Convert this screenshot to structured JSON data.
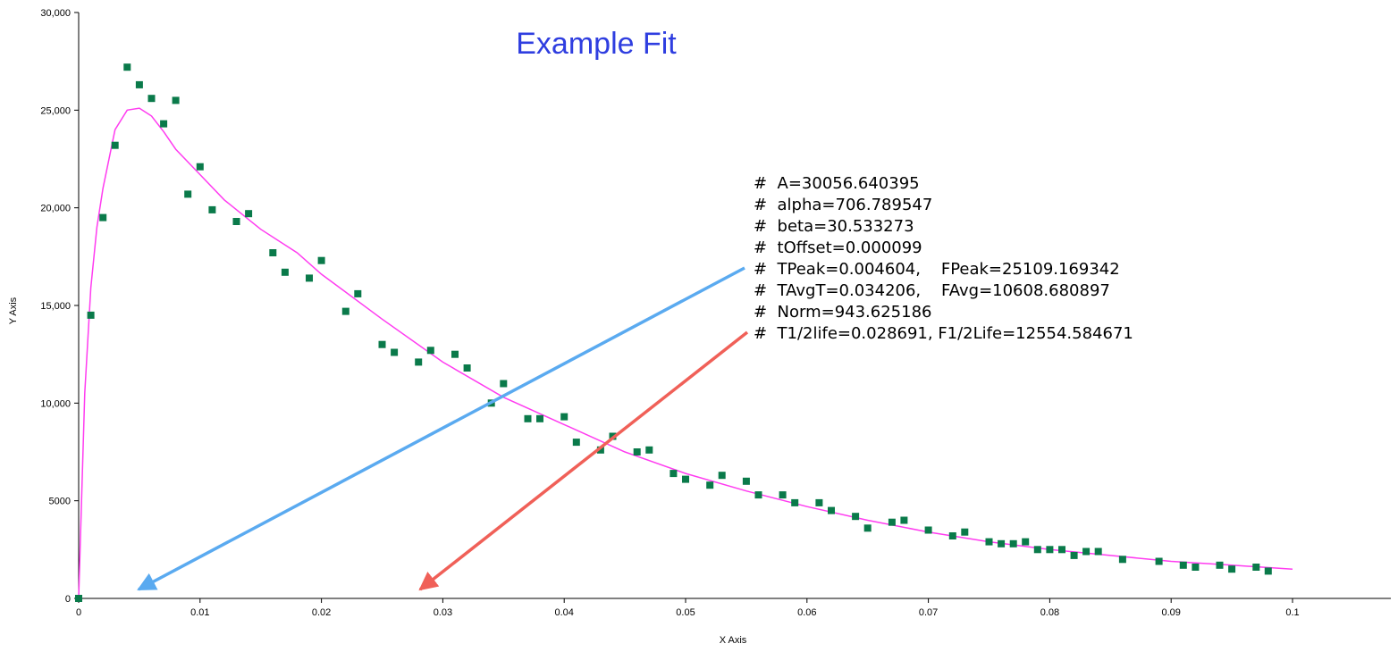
{
  "chart_data": {
    "type": "scatter",
    "title": "Example Fit",
    "xlabel": "X Axis",
    "ylabel": "Y Axis",
    "xlim": [
      0,
      0.108
    ],
    "ylim": [
      0,
      30000
    ],
    "x_ticks": [
      0,
      0.01,
      0.02,
      0.03,
      0.04,
      0.05,
      0.06,
      0.07,
      0.08,
      0.09,
      0.1
    ],
    "x_tick_labels": [
      "0",
      "0.01",
      "0.02",
      "0.03",
      "0.04",
      "0.05",
      "0.06",
      "0.07",
      "0.08",
      "0.09",
      "0.1"
    ],
    "y_ticks": [
      0,
      5000,
      10000,
      15000,
      20000,
      25000,
      30000
    ],
    "y_tick_labels": [
      "0",
      "5000",
      "10,000",
      "15,000",
      "20,000",
      "25,000",
      "30,000"
    ],
    "grid": false,
    "colors": {
      "points": "#0a7a4a",
      "fit": "#ff3cf0",
      "title": "#2f3ee0",
      "arrow_blue": "#5aaaf0",
      "arrow_red": "#f06058"
    },
    "series": [
      {
        "kind": "points",
        "points": [
          [
            0.0,
            0
          ],
          [
            0.001,
            14500
          ],
          [
            0.002,
            19500
          ],
          [
            0.003,
            23200
          ],
          [
            0.004,
            27200
          ],
          [
            0.005,
            26300
          ],
          [
            0.006,
            25600
          ],
          [
            0.007,
            24300
          ],
          [
            0.008,
            25500
          ],
          [
            0.009,
            20700
          ],
          [
            0.01,
            22100
          ],
          [
            0.011,
            19900
          ],
          [
            0.013,
            19300
          ],
          [
            0.014,
            19700
          ],
          [
            0.016,
            17700
          ],
          [
            0.017,
            16700
          ],
          [
            0.019,
            16400
          ],
          [
            0.02,
            17300
          ],
          [
            0.022,
            14700
          ],
          [
            0.023,
            15600
          ],
          [
            0.025,
            13000
          ],
          [
            0.026,
            12600
          ],
          [
            0.028,
            12100
          ],
          [
            0.029,
            12700
          ],
          [
            0.031,
            12500
          ],
          [
            0.032,
            11800
          ],
          [
            0.034,
            10000
          ],
          [
            0.035,
            11000
          ],
          [
            0.037,
            9200
          ],
          [
            0.038,
            9200
          ],
          [
            0.04,
            9300
          ],
          [
            0.041,
            8000
          ],
          [
            0.043,
            7600
          ],
          [
            0.044,
            8300
          ],
          [
            0.046,
            7500
          ],
          [
            0.047,
            7600
          ],
          [
            0.049,
            6400
          ],
          [
            0.05,
            6100
          ],
          [
            0.052,
            5800
          ],
          [
            0.053,
            6300
          ],
          [
            0.055,
            6000
          ],
          [
            0.056,
            5300
          ],
          [
            0.058,
            5300
          ],
          [
            0.059,
            4900
          ],
          [
            0.061,
            4900
          ],
          [
            0.062,
            4500
          ],
          [
            0.064,
            4200
          ],
          [
            0.065,
            3600
          ],
          [
            0.067,
            3900
          ],
          [
            0.068,
            4000
          ],
          [
            0.07,
            3500
          ],
          [
            0.072,
            3200
          ],
          [
            0.073,
            3400
          ],
          [
            0.075,
            2900
          ],
          [
            0.076,
            2800
          ],
          [
            0.077,
            2800
          ],
          [
            0.078,
            2900
          ],
          [
            0.079,
            2500
          ],
          [
            0.08,
            2500
          ],
          [
            0.081,
            2500
          ],
          [
            0.082,
            2200
          ],
          [
            0.083,
            2400
          ],
          [
            0.084,
            2400
          ],
          [
            0.086,
            2000
          ],
          [
            0.089,
            1900
          ],
          [
            0.091,
            1700
          ],
          [
            0.092,
            1600
          ],
          [
            0.094,
            1700
          ],
          [
            0.095,
            1500
          ],
          [
            0.097,
            1600
          ],
          [
            0.098,
            1400
          ]
        ]
      },
      {
        "kind": "fit-line",
        "points": [
          [
            0.0,
            0
          ],
          [
            0.0005,
            10500
          ],
          [
            0.001,
            15900
          ],
          [
            0.0015,
            19000
          ],
          [
            0.002,
            21000
          ],
          [
            0.003,
            24000
          ],
          [
            0.004,
            25000
          ],
          [
            0.005,
            25100
          ],
          [
            0.006,
            24700
          ],
          [
            0.007,
            23900
          ],
          [
            0.008,
            23000
          ],
          [
            0.01,
            21700
          ],
          [
            0.012,
            20400
          ],
          [
            0.015,
            18900
          ],
          [
            0.018,
            17700
          ],
          [
            0.02,
            16600
          ],
          [
            0.025,
            14300
          ],
          [
            0.03,
            12100
          ],
          [
            0.035,
            10300
          ],
          [
            0.04,
            8900
          ],
          [
            0.045,
            7500
          ],
          [
            0.05,
            6400
          ],
          [
            0.055,
            5500
          ],
          [
            0.06,
            4700
          ],
          [
            0.065,
            4000
          ],
          [
            0.07,
            3400
          ],
          [
            0.075,
            2900
          ],
          [
            0.08,
            2500
          ],
          [
            0.085,
            2200
          ],
          [
            0.09,
            1900
          ],
          [
            0.095,
            1700
          ],
          [
            0.1,
            1500
          ]
        ]
      }
    ],
    "annotations": [
      "#  A=30056.640395",
      "#  alpha=706.789547",
      "#  beta=30.533273",
      "#  tOffset=0.000099",
      "#  TPeak=0.004604,    FPeak=25109.169342",
      "#  TAvgT=0.034206,    FAvg=10608.680897",
      "#  Norm=943.625186",
      "#  T1/2life=0.028691, F1/2Life=12554.584671"
    ]
  }
}
